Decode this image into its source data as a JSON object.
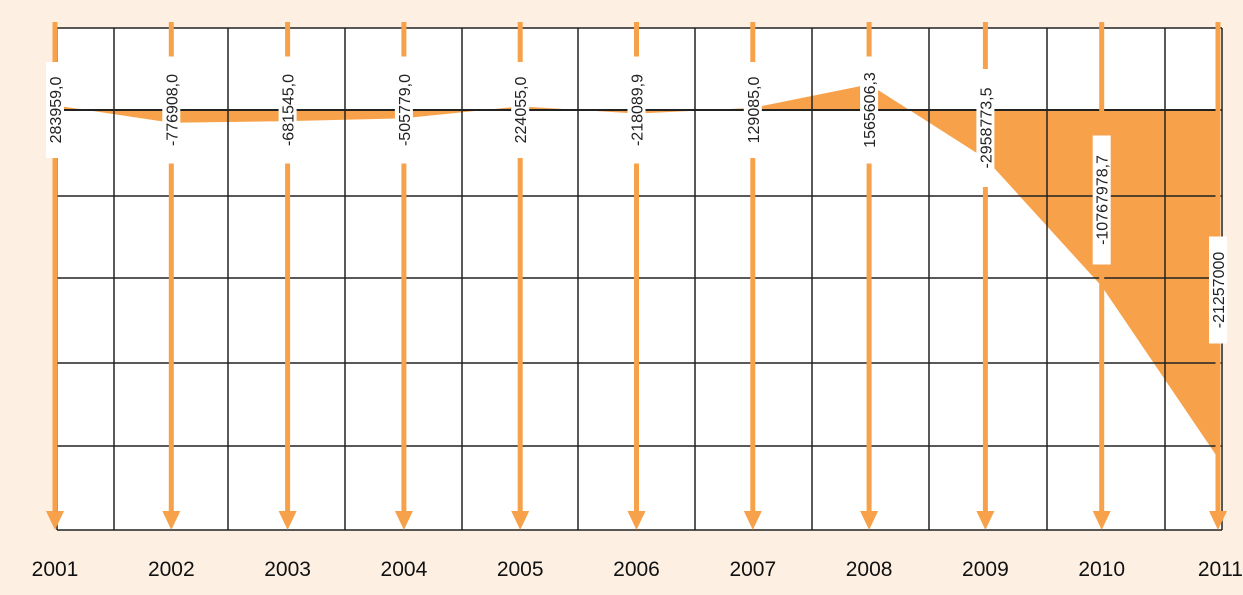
{
  "colors": {
    "panel_background": "#fdf0e3",
    "plot_background": "#ffffff",
    "grid": "#222222",
    "accent": "#f7a24a",
    "label_box": "#ffffff",
    "label_text": "#222222",
    "axis_text": "#111111"
  },
  "chart_data": {
    "type": "area",
    "title": "",
    "xlabel": "",
    "ylabel": "",
    "grid": true,
    "legend": "none",
    "categories": [
      "2001",
      "2002",
      "2003",
      "2004",
      "2005",
      "2006",
      "2007",
      "2008",
      "2009",
      "2010",
      "2011"
    ],
    "values": [
      283959.0,
      -776908.0,
      -681545.0,
      -505779.0,
      224055.0,
      -218089.9,
      129085.0,
      1565606.3,
      -2958773.5,
      -10767978.7,
      -21257000
    ],
    "value_labels": [
      "283959,0",
      "-776908,0",
      "-681545,0",
      "-505779,0",
      "224055,0",
      "-218089,9",
      "129085,0",
      "1565606,3",
      "-2958773,5",
      "-10767978,7",
      "-21257000"
    ],
    "ylim": [
      -24000000,
      2000000
    ]
  }
}
